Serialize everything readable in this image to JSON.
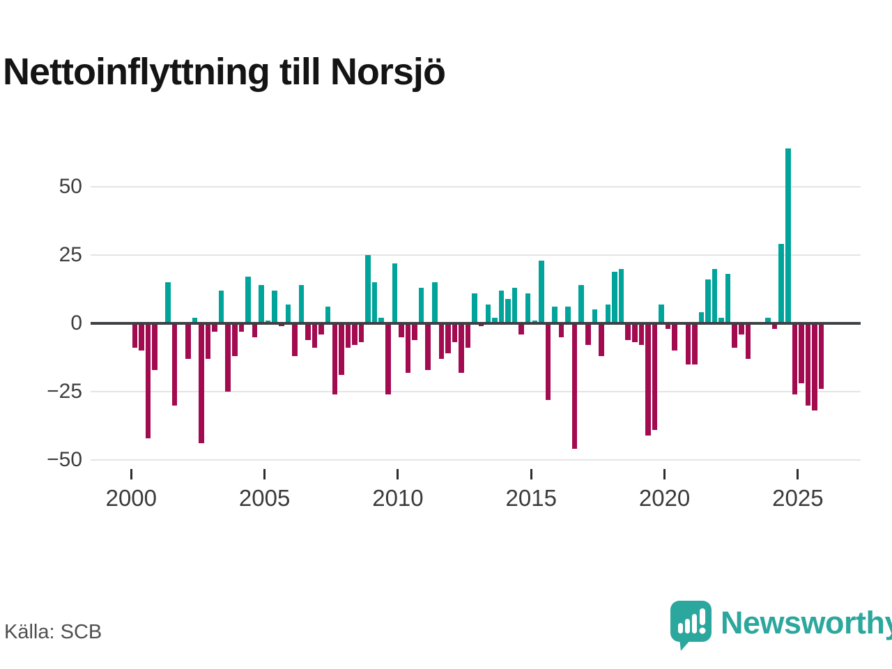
{
  "title": "Nettoinflyttning till Norsjö",
  "footer": {
    "source": "Källa: SCB",
    "brand": "Newsworthy"
  },
  "chart_data": {
    "type": "bar",
    "title": "Nettoinflyttning till Norsjö",
    "source": "Källa: SCB",
    "frequency": "quarterly",
    "start": "2000Q1",
    "end": "2025Q4",
    "x_tick_labels": [
      "2000",
      "2005",
      "2010",
      "2015",
      "2020",
      "2025"
    ],
    "y_ticks": [
      50,
      25,
      0,
      -25,
      -50
    ],
    "y_tick_labels": [
      "50",
      "25",
      "0",
      "−25",
      "−50"
    ],
    "ylim": [
      -50,
      65
    ],
    "grid": "horizontal",
    "legend": "none",
    "colors": {
      "positive": "#00a49a",
      "negative": "#a30b50"
    },
    "series": [
      {
        "name": "Nettoinflyttning",
        "values": [
          -9,
          -10,
          -42,
          -17,
          0,
          15,
          -30,
          0,
          -13,
          2,
          -44,
          -13,
          -3,
          12,
          -25,
          -12,
          -3,
          17,
          -5,
          14,
          1,
          12,
          -1,
          7,
          -12,
          14,
          -6,
          -9,
          -4,
          6,
          -26,
          -19,
          -9,
          -8,
          -7,
          25,
          15,
          2,
          -26,
          22,
          -5,
          -18,
          -6,
          13,
          -17,
          15,
          -13,
          -11,
          -7,
          -18,
          -9,
          11,
          -1,
          7,
          2,
          12,
          9,
          13,
          -4,
          11,
          1,
          23,
          -28,
          6,
          -5,
          6,
          -46,
          14,
          -8,
          5,
          -12,
          7,
          19,
          20,
          -6,
          -7,
          -8,
          -41,
          -39,
          7,
          -2,
          -10,
          0,
          -15,
          -15,
          4,
          16,
          20,
          2,
          18,
          -9,
          -4,
          -13,
          0,
          0,
          2,
          -2,
          29,
          64,
          -26,
          -22,
          -30,
          -32,
          -24
        ]
      }
    ]
  }
}
